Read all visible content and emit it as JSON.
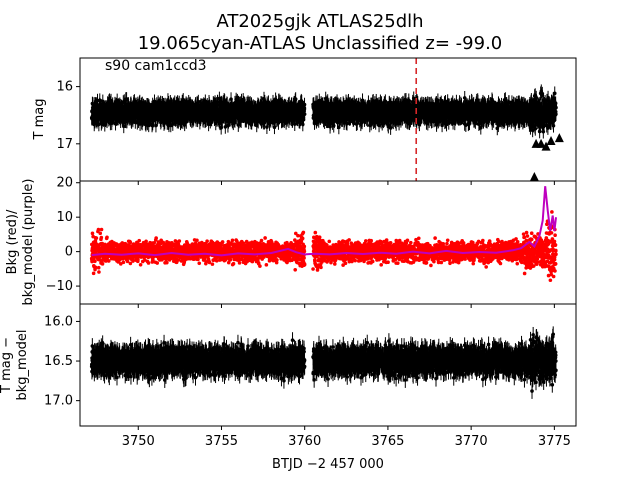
{
  "chart_data": [
    {
      "type": "scatter",
      "title_line1": "AT2025gjk  ATLAS25dlh",
      "title_line2": "19.065cyan-ATLAS Unclassified z= -99.0",
      "annotation": "s90 cam1ccd3",
      "ylabel": "T mag",
      "xlim": [
        3746.5,
        3776.3
      ],
      "ylim": [
        17.65,
        15.5
      ],
      "yticks": [
        16,
        17
      ],
      "ytick_labels": [
        "16",
        "17"
      ],
      "vline_x": 3766.7,
      "vline_color": "#d62728",
      "series": [
        {
          "name": "T mag",
          "color": "#000000",
          "segments": [
            [
              3747.2,
              3760.0
            ],
            [
              3760.5,
              3775.1
            ]
          ],
          "level": 16.45,
          "scatter": 0.22,
          "errorbar": 0.12
        },
        {
          "name": "upper limits",
          "color": "#000000",
          "marker": "triangle",
          "points": [
            [
              3773.9,
              17.0
            ],
            [
              3774.2,
              17.0
            ],
            [
              3774.5,
              17.05
            ],
            [
              3774.8,
              16.95
            ],
            [
              3775.3,
              16.9
            ],
            [
              3773.8,
              17.58
            ]
          ]
        }
      ]
    },
    {
      "type": "scatter",
      "ylabel_line1": "Bkg (red)/",
      "ylabel_line2": "bkg_model (purple)",
      "xlim": [
        3746.5,
        3776.3
      ],
      "ylim": [
        -15.2,
        20.5
      ],
      "yticks": [
        -10,
        0,
        10,
        20
      ],
      "ytick_labels": [
        "−10",
        "0",
        "10",
        "20"
      ],
      "series": [
        {
          "name": "Bkg",
          "color": "#ff0000",
          "segments": [
            [
              3747.2,
              3760.0
            ],
            [
              3760.5,
              3775.1
            ]
          ],
          "level": 0.0,
          "scatter": 3.5
        },
        {
          "name": "bkg_model",
          "color": "#bf00bf",
          "points": [
            [
              3747.2,
              -1.0
            ],
            [
              3748.0,
              -0.6
            ],
            [
              3749.0,
              -0.9
            ],
            [
              3750.0,
              -0.5
            ],
            [
              3751.0,
              -1.0
            ],
            [
              3752.0,
              -0.4
            ],
            [
              3753.0,
              -0.9
            ],
            [
              3754.0,
              -0.6
            ],
            [
              3755.0,
              -1.1
            ],
            [
              3756.0,
              -0.5
            ],
            [
              3757.0,
              -0.8
            ],
            [
              3758.0,
              -0.4
            ],
            [
              3759.0,
              0.8
            ],
            [
              3759.5,
              -0.2
            ],
            [
              3760.0,
              -0.8
            ],
            [
              3760.6,
              -0.6
            ],
            [
              3761.5,
              -0.8
            ],
            [
              3762.5,
              -0.4
            ],
            [
              3763.5,
              -0.7
            ],
            [
              3764.5,
              -0.3
            ],
            [
              3765.5,
              -0.6
            ],
            [
              3766.5,
              0.0
            ],
            [
              3767.5,
              -0.5
            ],
            [
              3768.5,
              0.2
            ],
            [
              3769.5,
              -0.4
            ],
            [
              3770.5,
              -0.1
            ],
            [
              3771.5,
              -0.3
            ],
            [
              3772.5,
              0.4
            ],
            [
              3773.0,
              1.0
            ],
            [
              3773.5,
              2.8
            ],
            [
              3773.8,
              1.5
            ],
            [
              3774.1,
              4.5
            ],
            [
              3774.3,
              9.0
            ],
            [
              3774.45,
              19.0
            ],
            [
              3774.6,
              12.0
            ],
            [
              3774.75,
              6.0
            ],
            [
              3774.9,
              10.5
            ],
            [
              3775.0,
              6.0
            ],
            [
              3775.1,
              10.0
            ]
          ]
        }
      ]
    },
    {
      "type": "scatter",
      "ylabel_line1": "T mag −",
      "ylabel_line2": "bkg_model",
      "xlabel": "BTJD −2 457 000",
      "xlim": [
        3746.5,
        3776.3
      ],
      "ylim": [
        17.32,
        15.78
      ],
      "xticks": [
        3750,
        3755,
        3760,
        3765,
        3770,
        3775
      ],
      "xtick_labels": [
        "3750",
        "3755",
        "3760",
        "3765",
        "3770",
        "3775"
      ],
      "yticks": [
        16.0,
        16.5,
        17.0
      ],
      "ytick_labels": [
        "16.0",
        "16.5",
        "17.0"
      ],
      "series": [
        {
          "name": "T mag − bkg_model",
          "color": "#000000",
          "segments": [
            [
              3747.2,
              3760.0
            ],
            [
              3760.5,
              3775.1
            ]
          ],
          "level": 16.5,
          "scatter": 0.2,
          "errorbar": 0.1
        }
      ]
    }
  ]
}
